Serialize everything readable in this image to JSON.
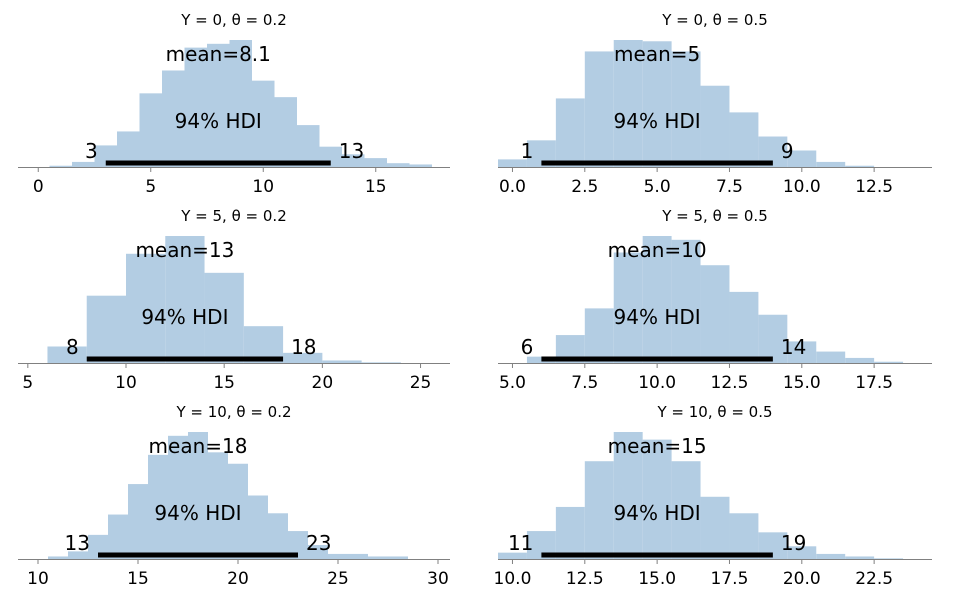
{
  "colors": {
    "bar": "#b3cde3",
    "hdi": "#000000",
    "axis": "#808080"
  },
  "chart_data": [
    {
      "type": "bar",
      "title": "Y = 0, θ = 0.2",
      "xlim": [
        -0.9,
        18.3
      ],
      "xticks": [
        0,
        5,
        10,
        15
      ],
      "bin_edges": [
        0.5,
        1.5,
        2.5,
        3.5,
        4.5,
        5.5,
        6.5,
        7.5,
        8.5,
        9.5,
        10.5,
        11.5,
        12.5,
        13.5,
        14.5,
        15.5,
        16.5,
        17.5
      ],
      "counts": [
        0.01,
        0.04,
        0.17,
        0.28,
        0.58,
        0.76,
        0.94,
        0.97,
        1.0,
        0.68,
        0.55,
        0.33,
        0.16,
        0.1,
        0.07,
        0.03,
        0.02
      ],
      "mean_label": "mean=8.1",
      "hdi_label": "94% HDI",
      "hdi": [
        3,
        13
      ],
      "hdi_low_label": "3",
      "hdi_high_label": "13"
    },
    {
      "type": "bar",
      "title": "Y = 0, θ = 0.5",
      "xlim": [
        -0.5,
        14.5
      ],
      "xticks": [
        0.0,
        2.5,
        5.0,
        7.5,
        10.0,
        12.5
      ],
      "xtick_labels": [
        "0.0",
        "2.5",
        "5.0",
        "7.5",
        "10.0",
        "12.5"
      ],
      "bin_edges": [
        -0.5,
        0.5,
        1.5,
        2.5,
        3.5,
        4.5,
        5.5,
        6.5,
        7.5,
        8.5,
        9.5,
        10.5,
        11.5,
        12.5
      ],
      "counts": [
        0.06,
        0.21,
        0.54,
        0.91,
        1.0,
        0.99,
        0.91,
        0.64,
        0.43,
        0.24,
        0.13,
        0.04,
        0.01
      ],
      "mean_label": "mean=5",
      "hdi_label": "94% HDI",
      "hdi": [
        1,
        9
      ],
      "hdi_low_label": "1",
      "hdi_high_label": "9"
    },
    {
      "type": "bar",
      "title": "Y = 5, θ = 0.2",
      "xlim": [
        4.5,
        26.5
      ],
      "xticks": [
        5,
        10,
        15,
        20,
        25
      ],
      "bin_edges": [
        6,
        8,
        10,
        12,
        14,
        16,
        18,
        20,
        22,
        24
      ],
      "counts": [
        0.13,
        0.53,
        0.86,
        1.0,
        0.71,
        0.29,
        0.08,
        0.02,
        0.005
      ],
      "mean_label": "mean=13",
      "hdi_label": "94% HDI",
      "hdi": [
        8,
        18
      ],
      "hdi_low_label": "8",
      "hdi_high_label": "18"
    },
    {
      "type": "bar",
      "title": "Y = 5, θ = 0.5",
      "xlim": [
        4.5,
        19.5
      ],
      "xticks": [
        5.0,
        7.5,
        10.0,
        12.5,
        15.0,
        17.5
      ],
      "xtick_labels": [
        "5.0",
        "7.5",
        "10.0",
        "12.5",
        "15.0",
        "17.5"
      ],
      "bin_edges": [
        5.5,
        6.5,
        7.5,
        8.5,
        9.5,
        10.5,
        11.5,
        12.5,
        13.5,
        14.5,
        15.5,
        16.5,
        17.5,
        18.5
      ],
      "counts": [
        0.05,
        0.22,
        0.43,
        0.87,
        1.0,
        0.97,
        0.77,
        0.56,
        0.38,
        0.17,
        0.09,
        0.04,
        0.01
      ],
      "mean_label": "mean=10",
      "hdi_label": "94% HDI",
      "hdi": [
        6,
        14
      ],
      "hdi_low_label": "6",
      "hdi_high_label": "14"
    },
    {
      "type": "bar",
      "title": "Y = 10, θ = 0.2",
      "xlim": [
        9.0,
        30.6
      ],
      "xticks": [
        10,
        15,
        20,
        25,
        30
      ],
      "bin_edges": [
        10.5,
        11.5,
        12.5,
        13.5,
        14.5,
        15.5,
        16.5,
        17.5,
        18.5,
        19.5,
        20.5,
        21.5,
        22.5,
        23.5,
        24.5,
        26.5,
        28.5
      ],
      "counts": [
        0.02,
        0.06,
        0.19,
        0.35,
        0.59,
        0.82,
        0.97,
        1.0,
        0.84,
        0.75,
        0.5,
        0.36,
        0.22,
        0.11,
        0.04,
        0.02
      ],
      "mean_label": "mean=18",
      "hdi_label": "94% HDI",
      "hdi": [
        13,
        23
      ],
      "hdi_low_label": "13",
      "hdi_high_label": "23"
    },
    {
      "type": "bar",
      "title": "Y = 10, θ = 0.5",
      "xlim": [
        9.5,
        24.5
      ],
      "xticks": [
        10.0,
        12.5,
        15.0,
        17.5,
        20.0,
        22.5
      ],
      "xtick_labels": [
        "10.0",
        "12.5",
        "15.0",
        "17.5",
        "20.0",
        "22.5"
      ],
      "bin_edges": [
        9.5,
        10.5,
        11.5,
        12.5,
        13.5,
        14.5,
        15.5,
        16.5,
        17.5,
        18.5,
        19.5,
        20.5,
        21.5,
        22.5,
        23.5
      ],
      "counts": [
        0.05,
        0.22,
        0.41,
        0.77,
        1.0,
        0.94,
        0.77,
        0.49,
        0.36,
        0.21,
        0.1,
        0.04,
        0.02,
        0.005
      ],
      "mean_label": "mean=15",
      "hdi_label": "94% HDI",
      "hdi": [
        11,
        19
      ],
      "hdi_low_label": "11",
      "hdi_high_label": "19"
    }
  ]
}
